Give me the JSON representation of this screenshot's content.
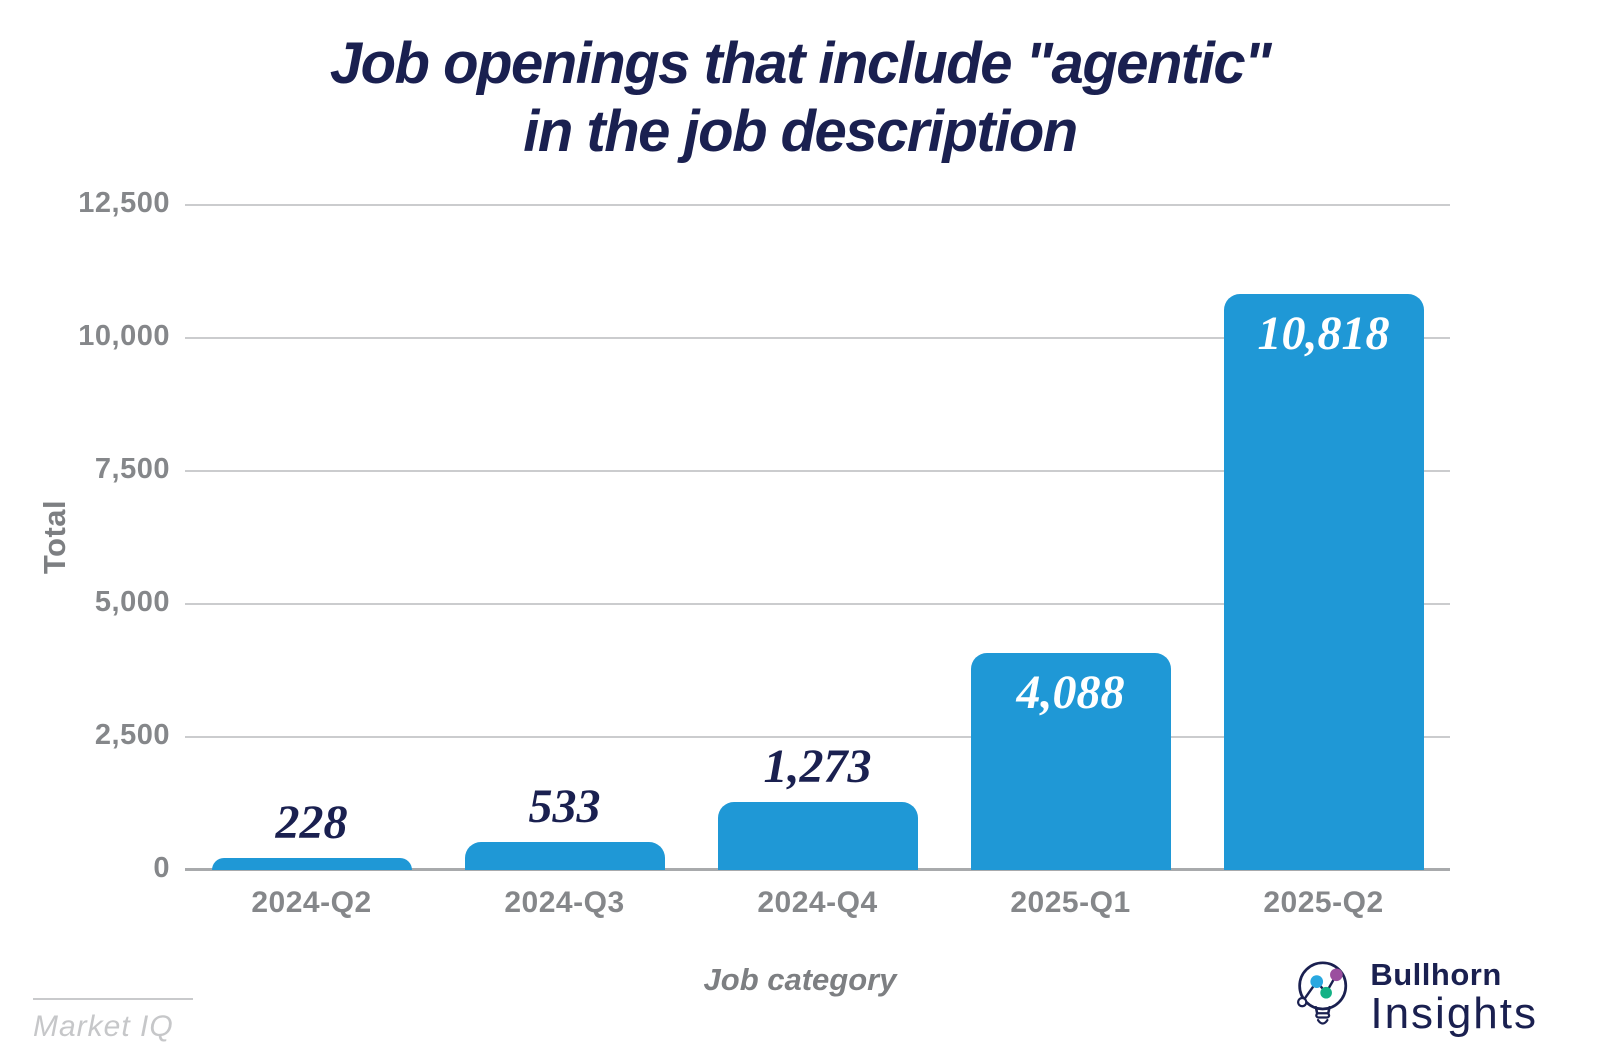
{
  "title": {
    "line1": "Job openings that include \"agentic\"",
    "line2": "in the job description"
  },
  "chart_data": {
    "type": "bar",
    "title": "Job openings that include \"agentic\" in the job description",
    "categories": [
      "2024-Q2",
      "2024-Q3",
      "2024-Q4",
      "2025-Q1",
      "2025-Q2"
    ],
    "values": [
      228,
      533,
      1273,
      4088,
      10818
    ],
    "value_labels": [
      "228",
      "533",
      "1,273",
      "4,088",
      "10,818"
    ],
    "xlabel": "Job category",
    "ylabel": "Total",
    "ylim": [
      0,
      12500
    ],
    "yticks": [
      0,
      2500,
      5000,
      7500,
      10000,
      12500
    ],
    "ytick_labels": [
      "0",
      "2,500",
      "5,000",
      "7,500",
      "10,000",
      "12,500"
    ],
    "grid": "horizontal",
    "legend": "none",
    "bar_color": "#1f98d6",
    "label_color_outside": "#1a2050",
    "label_color_inside": "#ffffff",
    "inside_label_threshold": 2500
  },
  "footer": {
    "source_label": "Market IQ",
    "brand_name": "Bullhorn",
    "brand_sub": "Insights"
  },
  "logo": {
    "icon": "lightbulb-icon",
    "outline_color": "#1a2050",
    "dot_blue": "#29a8e0",
    "dot_green": "#13b185",
    "dot_purple": "#9b4f9f"
  },
  "colors": {
    "title_navy": "#1a2050",
    "bar_blue": "#1f98d6",
    "gridline": "#cbccce",
    "axis_line": "#a8aaac",
    "tick_gray": "#85878a",
    "axis_title_gray": "#7d7f82",
    "source_gray": "#c6c7c9",
    "background": "#ffffff"
  }
}
